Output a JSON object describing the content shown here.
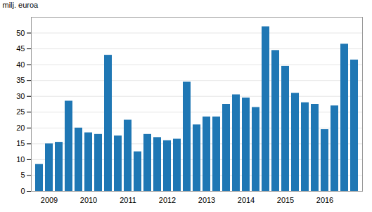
{
  "chart_data": {
    "type": "bar",
    "ylabel": "milj. euroa",
    "categories": [
      null,
      "2009",
      null,
      null,
      null,
      "2010",
      null,
      null,
      null,
      "2011",
      null,
      null,
      null,
      "2012",
      null,
      null,
      null,
      "2013",
      null,
      null,
      null,
      "2014",
      null,
      null,
      null,
      "2015",
      null,
      null,
      null,
      "2016",
      null,
      null,
      null
    ],
    "values": [
      8.5,
      15.0,
      15.5,
      28.5,
      20.0,
      18.5,
      18.0,
      43.0,
      17.5,
      22.5,
      12.5,
      18.0,
      17.0,
      16.0,
      16.5,
      34.5,
      21.0,
      23.5,
      23.5,
      27.5,
      30.5,
      29.5,
      26.5,
      52.0,
      44.5,
      39.5,
      31.0,
      28.0,
      27.5,
      19.5,
      27.0,
      46.5,
      41.5
    ],
    "color": "#1f77b4",
    "ylim": [
      0,
      55
    ],
    "yticks": [
      0,
      5,
      10,
      15,
      20,
      25,
      30,
      35,
      40,
      45,
      50
    ],
    "grid": true
  }
}
